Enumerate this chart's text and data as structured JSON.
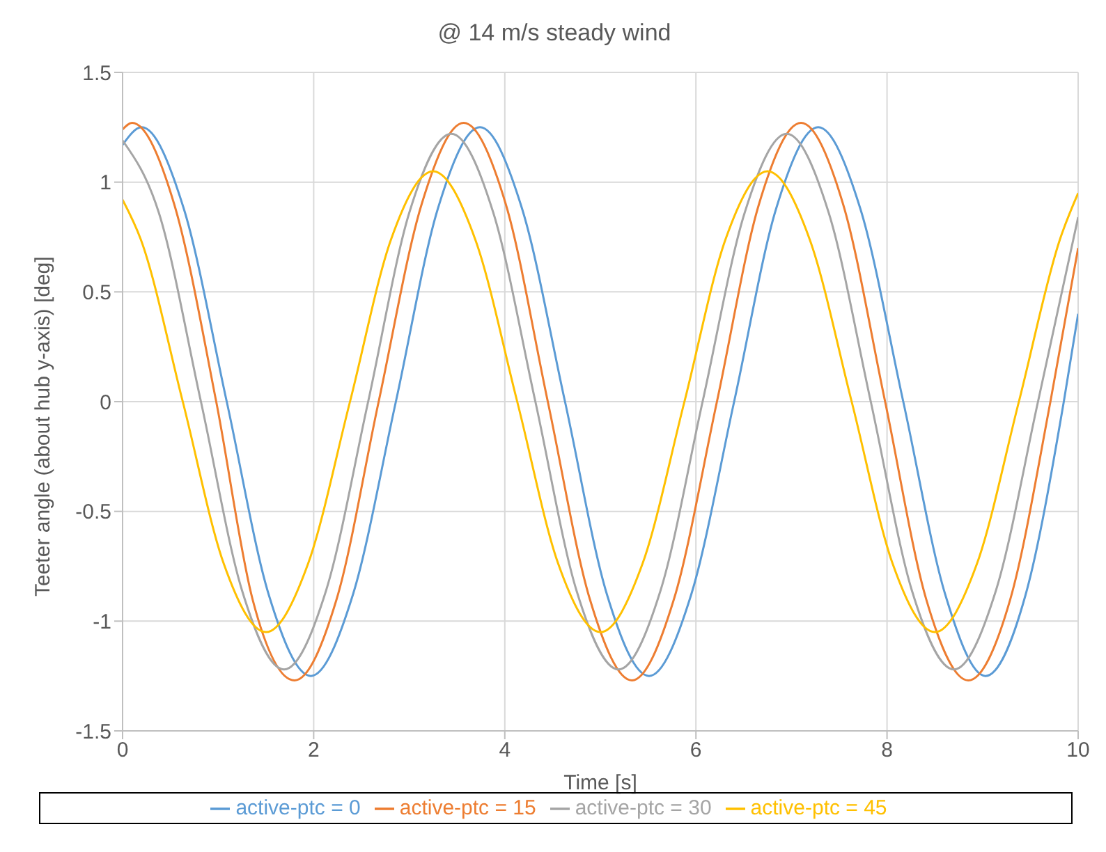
{
  "chart_data": {
    "type": "line",
    "title": "@ 14 m/s steady wind",
    "xlabel": "Time [s]",
    "ylabel": "Teeter angle (about hub y-axis) [deg]",
    "xlim": [
      0,
      10
    ],
    "xticks": [
      0,
      2,
      4,
      6,
      8,
      10
    ],
    "ylim": [
      -1.5,
      1.5
    ],
    "yticks": [
      -1.5,
      -1,
      -0.5,
      0,
      0.5,
      1,
      1.5
    ],
    "grid": true,
    "legend": "bottom",
    "marker": "none",
    "line_style": "solid",
    "series": [
      {
        "name": "active-ptc = 0",
        "color": "#5b9bd5",
        "x": [
          0,
          0.2,
          0.64,
          1.09,
          1.53,
          1.97,
          2.41,
          2.86,
          3.3,
          3.74,
          4.18,
          4.63,
          5.07,
          5.51,
          5.95,
          6.4,
          6.84,
          7.28,
          7.72,
          8.17,
          8.61,
          9.03,
          9.45,
          9.85,
          10
        ],
        "values": [
          1.17,
          1.25,
          0.88,
          0,
          -0.88,
          -1.25,
          -0.88,
          0,
          0.88,
          1.25,
          0.88,
          0,
          -0.88,
          -1.25,
          -0.88,
          0,
          0.88,
          1.25,
          0.88,
          0,
          -0.88,
          -1.25,
          -0.88,
          0,
          0.4
        ]
      },
      {
        "name": "active-ptc = 15",
        "color": "#ed7d31",
        "x": [
          0,
          0.1,
          0.54,
          0.98,
          1.36,
          1.8,
          2.24,
          2.68,
          3.13,
          3.57,
          4.01,
          4.45,
          4.89,
          5.33,
          5.77,
          6.22,
          6.66,
          7.1,
          7.54,
          7.98,
          8.41,
          8.85,
          9.29,
          9.71,
          10
        ],
        "values": [
          1.24,
          1.27,
          0.9,
          0,
          -0.9,
          -1.27,
          -0.9,
          0,
          0.9,
          1.27,
          0.9,
          0,
          -0.9,
          -1.27,
          -0.9,
          0,
          0.9,
          1.27,
          0.9,
          0,
          -0.9,
          -1.27,
          -0.9,
          0,
          0.7
        ]
      },
      {
        "name": "active-ptc = 30",
        "color": "#a5a5a5",
        "x": [
          0,
          0.38,
          0.82,
          1.25,
          1.69,
          2.13,
          2.57,
          3.0,
          3.44,
          3.88,
          4.32,
          4.75,
          5.19,
          5.63,
          6.07,
          6.51,
          6.95,
          7.39,
          7.83,
          8.26,
          8.7,
          9.14,
          9.58,
          10
        ],
        "values": [
          1.19,
          0.86,
          0,
          -0.86,
          -1.22,
          -0.86,
          0,
          0.86,
          1.22,
          0.86,
          0,
          -0.86,
          -1.22,
          -0.86,
          0,
          0.86,
          1.22,
          0.86,
          0,
          -0.86,
          -1.22,
          -0.86,
          0,
          0.84
        ]
      },
      {
        "name": "active-ptc = 45",
        "color": "#ffc000",
        "x": [
          0,
          0.19,
          0.63,
          1.06,
          1.5,
          1.94,
          2.38,
          2.81,
          3.25,
          3.69,
          4.13,
          4.56,
          5.0,
          5.44,
          5.88,
          6.31,
          6.75,
          7.19,
          7.63,
          8.06,
          8.5,
          8.94,
          9.38,
          9.81,
          10
        ],
        "values": [
          0.92,
          0.74,
          0,
          -0.74,
          -1.05,
          -0.74,
          0,
          0.74,
          1.05,
          0.74,
          0,
          -0.74,
          -1.05,
          -0.74,
          0,
          0.74,
          1.05,
          0.74,
          0,
          -0.74,
          -1.05,
          -0.74,
          0,
          0.74,
          0.95
        ]
      }
    ]
  }
}
